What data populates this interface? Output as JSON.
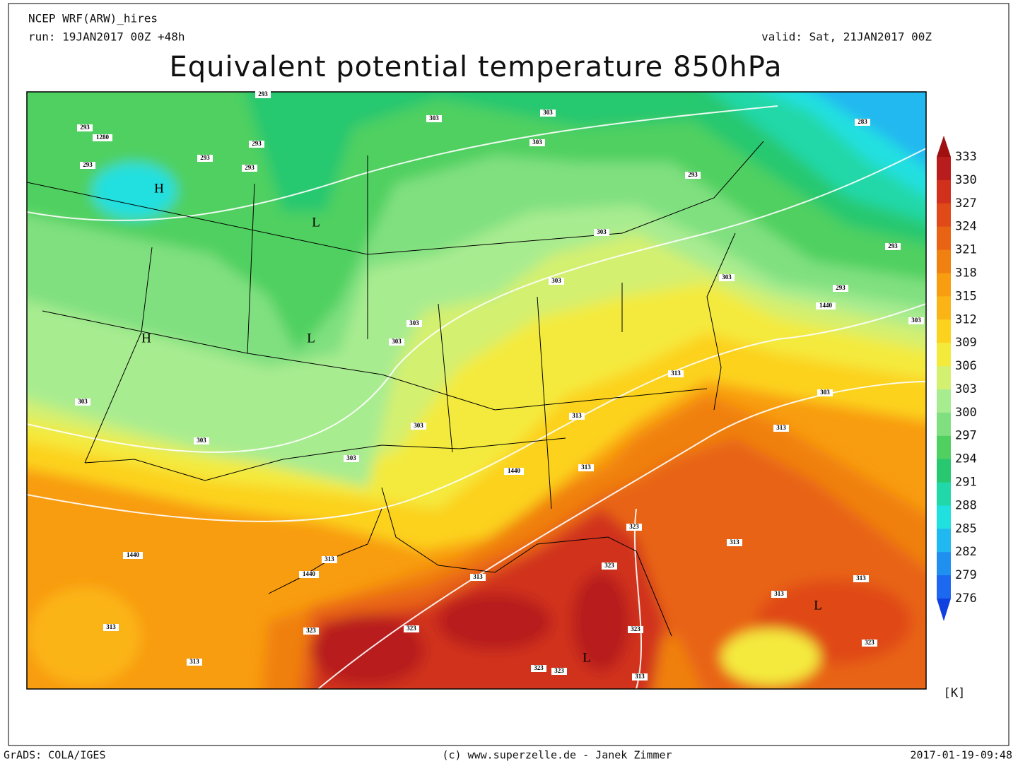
{
  "header": {
    "model": "NCEP WRF(ARW)_hires",
    "run": "run: 19JAN2017 00Z +48h",
    "valid": "valid: Sat, 21JAN2017 00Z",
    "title": "Equivalent potential temperature 850hPa"
  },
  "colorbar": {
    "levels": [
      333,
      330,
      327,
      324,
      321,
      318,
      315,
      312,
      309,
      306,
      303,
      300,
      297,
      294,
      291,
      288,
      285,
      282,
      279,
      276
    ],
    "colors": [
      "#a01010",
      "#b81c1c",
      "#d0301c",
      "#e04a18",
      "#e86414",
      "#f08010",
      "#f89c10",
      "#fbb416",
      "#fcd21e",
      "#f4ea3c",
      "#d4f070",
      "#a8ec90",
      "#80e080",
      "#50d060",
      "#28c870",
      "#20d8a8",
      "#20e0e0",
      "#20b8f0",
      "#2090f0",
      "#1c68f0",
      "#1040e0"
    ],
    "unit": "[K]"
  },
  "map_labels": [
    "293",
    "293",
    "1280",
    "293",
    "293",
    "293",
    "293",
    "L",
    "H",
    "H",
    "L",
    "303",
    "303",
    "303",
    "293",
    "303",
    "303",
    "303",
    "303",
    "303",
    "303",
    "303",
    "303",
    "313",
    "313",
    "1440",
    "323",
    "1440",
    "1440",
    "313",
    "313",
    "323",
    "323",
    "323",
    "323",
    "313",
    "313",
    "323",
    "323",
    "L",
    "313",
    "313",
    "313",
    "L",
    "313",
    "323",
    "313",
    "303",
    "313",
    "1440",
    "293",
    "293",
    "283",
    "303",
    "303"
  ],
  "footer": {
    "left": "GrADS: COLA/IGES",
    "center": "(c) www.superzelle.de - Janek Zimmer",
    "right": "2017-01-19-09:48"
  }
}
